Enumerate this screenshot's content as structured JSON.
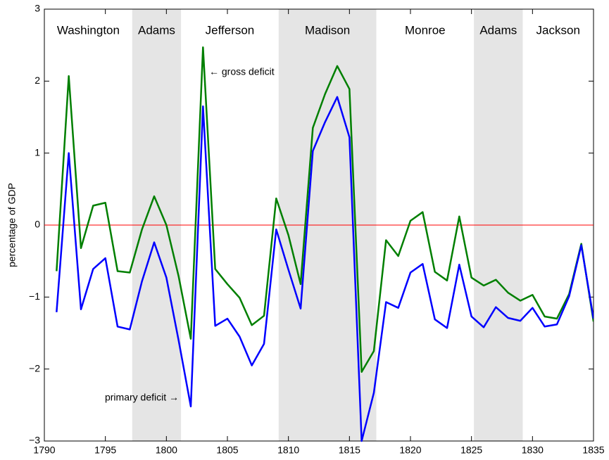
{
  "chart_data": {
    "type": "line",
    "y_label": "percentage of GDP",
    "x": [
      1791,
      1792,
      1793,
      1794,
      1795,
      1796,
      1797,
      1798,
      1799,
      1800,
      1801,
      1802,
      1803,
      1804,
      1805,
      1806,
      1807,
      1808,
      1809,
      1810,
      1811,
      1812,
      1813,
      1814,
      1815,
      1816,
      1817,
      1818,
      1819,
      1820,
      1821,
      1822,
      1823,
      1824,
      1825,
      1826,
      1827,
      1828,
      1829,
      1830,
      1831,
      1832,
      1833,
      1834,
      1835
    ],
    "series": [
      {
        "color": "#007f00",
        "values": [
          -0.64,
          2.07,
          -0.32,
          0.27,
          0.31,
          -0.64,
          -0.66,
          -0.06,
          0.4,
          0.0,
          -0.71,
          -1.58,
          2.47,
          -0.61,
          -0.82,
          -1.01,
          -1.39,
          -1.26,
          0.37,
          -0.14,
          -0.82,
          1.35,
          1.82,
          2.21,
          1.89,
          -2.04,
          -1.75,
          -0.21,
          -0.43,
          0.06,
          0.18,
          -0.65,
          -0.77,
          0.12,
          -0.73,
          -0.84,
          -0.76,
          -0.94,
          -1.05,
          -0.97,
          -1.27,
          -1.3,
          -0.96,
          -0.26,
          -1.34
        ]
      },
      {
        "color": "#0000ff",
        "values": [
          -1.21,
          1.0,
          -1.17,
          -0.61,
          -0.46,
          -1.41,
          -1.45,
          -0.78,
          -0.24,
          -0.73,
          -1.6,
          -2.52,
          1.65,
          -1.4,
          -1.3,
          -1.55,
          -1.95,
          -1.65,
          -0.06,
          -0.62,
          -1.16,
          1.03,
          1.43,
          1.78,
          1.22,
          -3.0,
          -2.33,
          -1.07,
          -1.15,
          -0.66,
          -0.54,
          -1.31,
          -1.43,
          -0.55,
          -1.27,
          -1.42,
          -1.14,
          -1.29,
          -1.33,
          -1.15,
          -1.41,
          -1.38,
          -0.99,
          -0.28,
          -1.3
        ]
      }
    ],
    "reference_line": {
      "value": 0,
      "color": "#ff0000"
    },
    "terms": [
      {
        "name": "Washington",
        "start": 1789,
        "end": 1797.2,
        "shaded": false
      },
      {
        "name": "Adams",
        "start": 1797.2,
        "end": 1801.2,
        "shaded": true
      },
      {
        "name": "Jefferson",
        "start": 1801.2,
        "end": 1809.2,
        "shaded": false
      },
      {
        "name": "Madison",
        "start": 1809.2,
        "end": 1817.2,
        "shaded": true
      },
      {
        "name": "Monroe",
        "start": 1817.2,
        "end": 1825.2,
        "shaded": false
      },
      {
        "name": "Adams",
        "start": 1825.2,
        "end": 1829.2,
        "shaded": true
      },
      {
        "name": "Jackson",
        "start": 1829.2,
        "end": 1837,
        "shaded": false
      }
    ],
    "shade_color": "#e5e5e5",
    "annotations": [
      "← gross deficit",
      "primary deficit →"
    ],
    "xlim": [
      1790,
      1835
    ],
    "xticks": [
      1790,
      1795,
      1800,
      1805,
      1810,
      1815,
      1820,
      1825,
      1830,
      1835
    ],
    "ylim": [
      -3,
      3
    ],
    "yticks": [
      {
        "value": -3,
        "label": "−3"
      },
      {
        "value": -2,
        "label": "−2"
      },
      {
        "value": -1,
        "label": "−1"
      },
      0,
      1,
      2,
      3
    ]
  }
}
